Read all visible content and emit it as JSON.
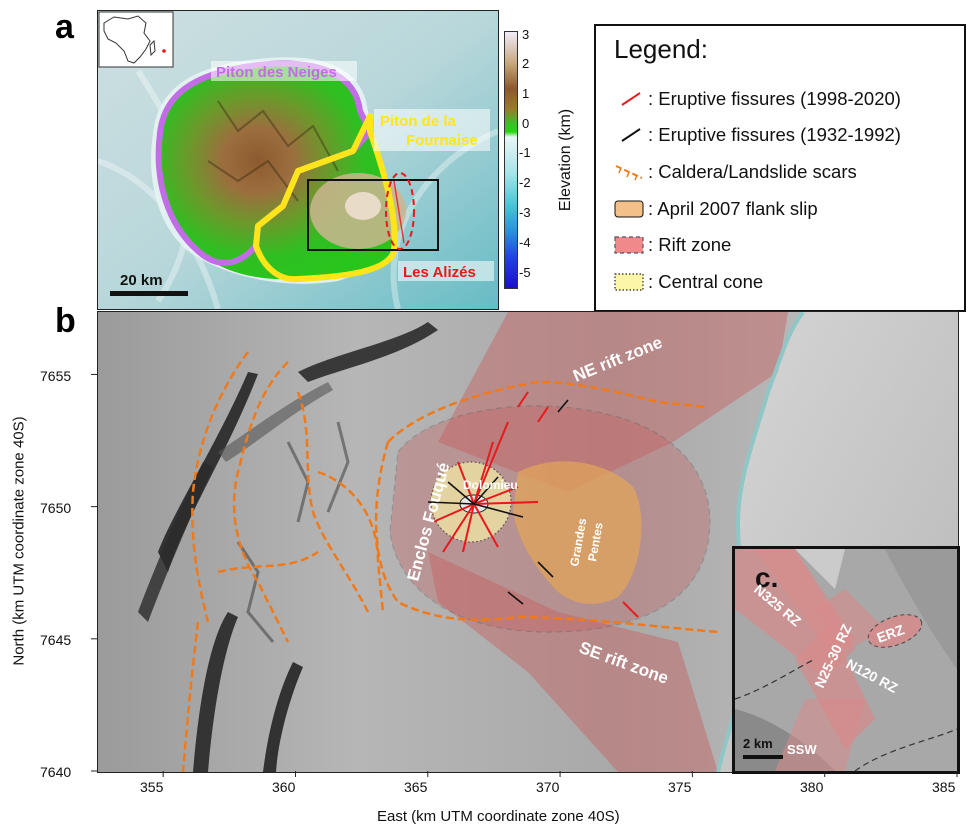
{
  "panels": {
    "a": "a",
    "b": "b"
  },
  "map_a": {
    "labels": {
      "piton_neiges": "Piton des Neiges",
      "piton_fournaise_line1": "Piton de la",
      "piton_fournaise_line2": "Fournaise",
      "les_alizes": "Les Alizés"
    },
    "scale_bar": "20 km"
  },
  "colorbar": {
    "title": "Elevation (km)",
    "ticks": [
      "3",
      "2",
      "1",
      "0",
      "-1",
      "-2",
      "-3",
      "-4",
      "-5"
    ]
  },
  "legend": {
    "title": "Legend:",
    "items": [
      {
        "symbol": "red-line-icon",
        "label": ": Eruptive fissures (1998-2020)"
      },
      {
        "symbol": "black-line-icon",
        "label": ": Eruptive fissures (1932-1992)"
      },
      {
        "symbol": "orange-dashed-scar-icon",
        "label": ": Caldera/Landslide scars"
      },
      {
        "symbol": "orange-patch-icon",
        "label": ": April 2007 flank slip"
      },
      {
        "symbol": "red-dashed-patch-icon",
        "label": ": Rift zone"
      },
      {
        "symbol": "yellow-dotted-patch-icon",
        "label": ": Central cone"
      }
    ],
    "colors": {
      "recent_fissures": "#e8191d",
      "old_fissures": "#111111",
      "scars": "#f07a1a",
      "flank_slip": "#f3c089",
      "rift_zone": "#f08a8a",
      "central_cone": "#fbf6a8"
    }
  },
  "map_b": {
    "labels": {
      "ne_rift": "NE rift zone",
      "se_rift": "SE rift zone",
      "enclos": "Enclos Fouqué",
      "dolomieu": "Dolomieu",
      "grandes_line1": "Grandes",
      "grandes_line2": "Pentes"
    },
    "x_ticks": [
      "355",
      "360",
      "365",
      "370",
      "375",
      "380",
      "385"
    ],
    "y_ticks": [
      "7655",
      "7650",
      "7645",
      "7640"
    ],
    "x_title": "East (km UTM coordinate zone 40S)",
    "y_title": "North (km UTM coordinate zone 40S)"
  },
  "inset_c": {
    "letter": "c.",
    "labels": {
      "n325": "N325 RZ",
      "n25_30": "N25-30 RZ",
      "n120": "N120 RZ",
      "erz": "ERZ",
      "ssw": "SSW"
    },
    "scale_bar": "2 km"
  }
}
